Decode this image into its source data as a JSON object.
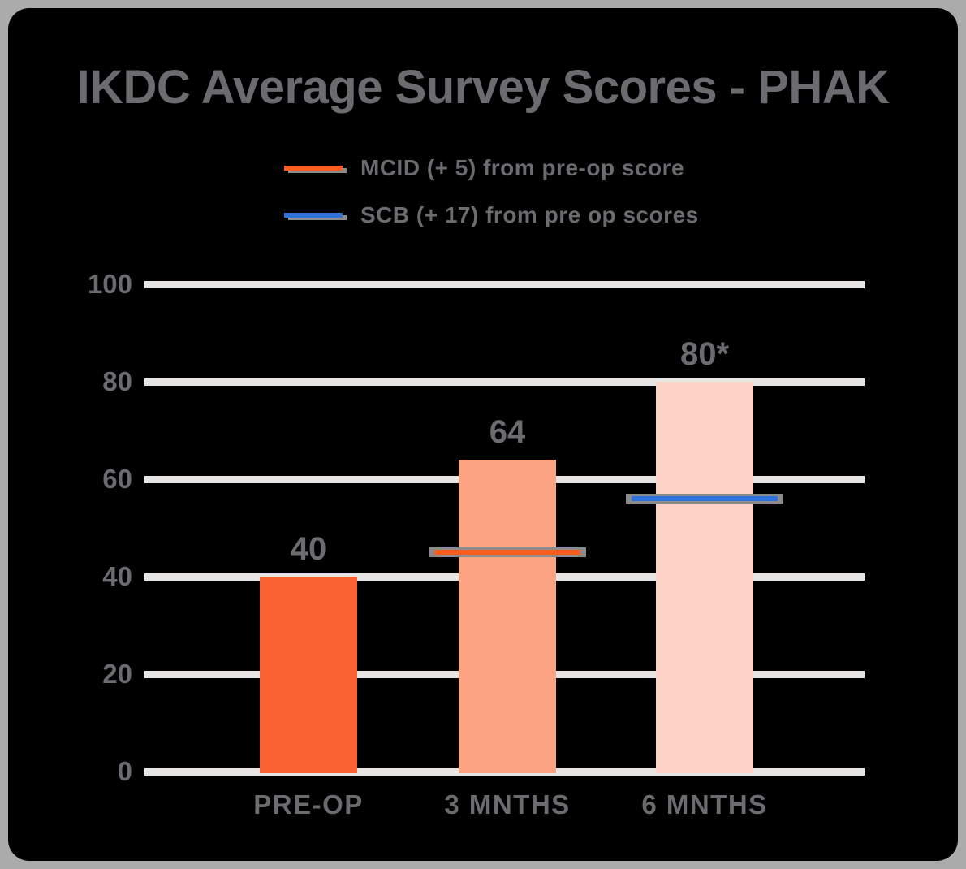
{
  "title": "IKDC Average Survey Scores - PHAK",
  "colors": {
    "page_frame": "#ABABAB",
    "card_background": "#000000",
    "text": "#6C6C70",
    "gridline": "#E7E5E3",
    "line_cap_gray": "#8B8B8B"
  },
  "legend": {
    "items": [
      {
        "label": "MCID (+ 5) from pre-op score",
        "color": "#F85D1F"
      },
      {
        "label": "SCB (+ 17) from pre op scores",
        "color": "#2F72D8"
      }
    ]
  },
  "chart_data": {
    "type": "bar",
    "title": "IKDC Average Survey Scores - PHAK",
    "categories": [
      "PRE-OP",
      "3 MNTHS",
      "6 MNTHS"
    ],
    "values": [
      40,
      64,
      80
    ],
    "value_labels": [
      "40",
      "64",
      "80*"
    ],
    "bar_colors": [
      "#FB6233",
      "#FCA381",
      "#FDD3C7"
    ],
    "xlabel": "",
    "ylabel": "",
    "ylim": [
      0,
      100
    ],
    "yticks": [
      0,
      20,
      40,
      60,
      80,
      100
    ],
    "grid": "horizontal gridlines only",
    "legend_position": "top-center",
    "reference_lines": [
      {
        "name": "MCID threshold",
        "value": 45,
        "color": "#F85D1F",
        "over_category": "3 MNTHS",
        "category_index": 1
      },
      {
        "name": "SCB threshold",
        "value": 56,
        "color": "#2F72D8",
        "over_category": "6 MNTHS",
        "category_index": 2
      }
    ]
  }
}
